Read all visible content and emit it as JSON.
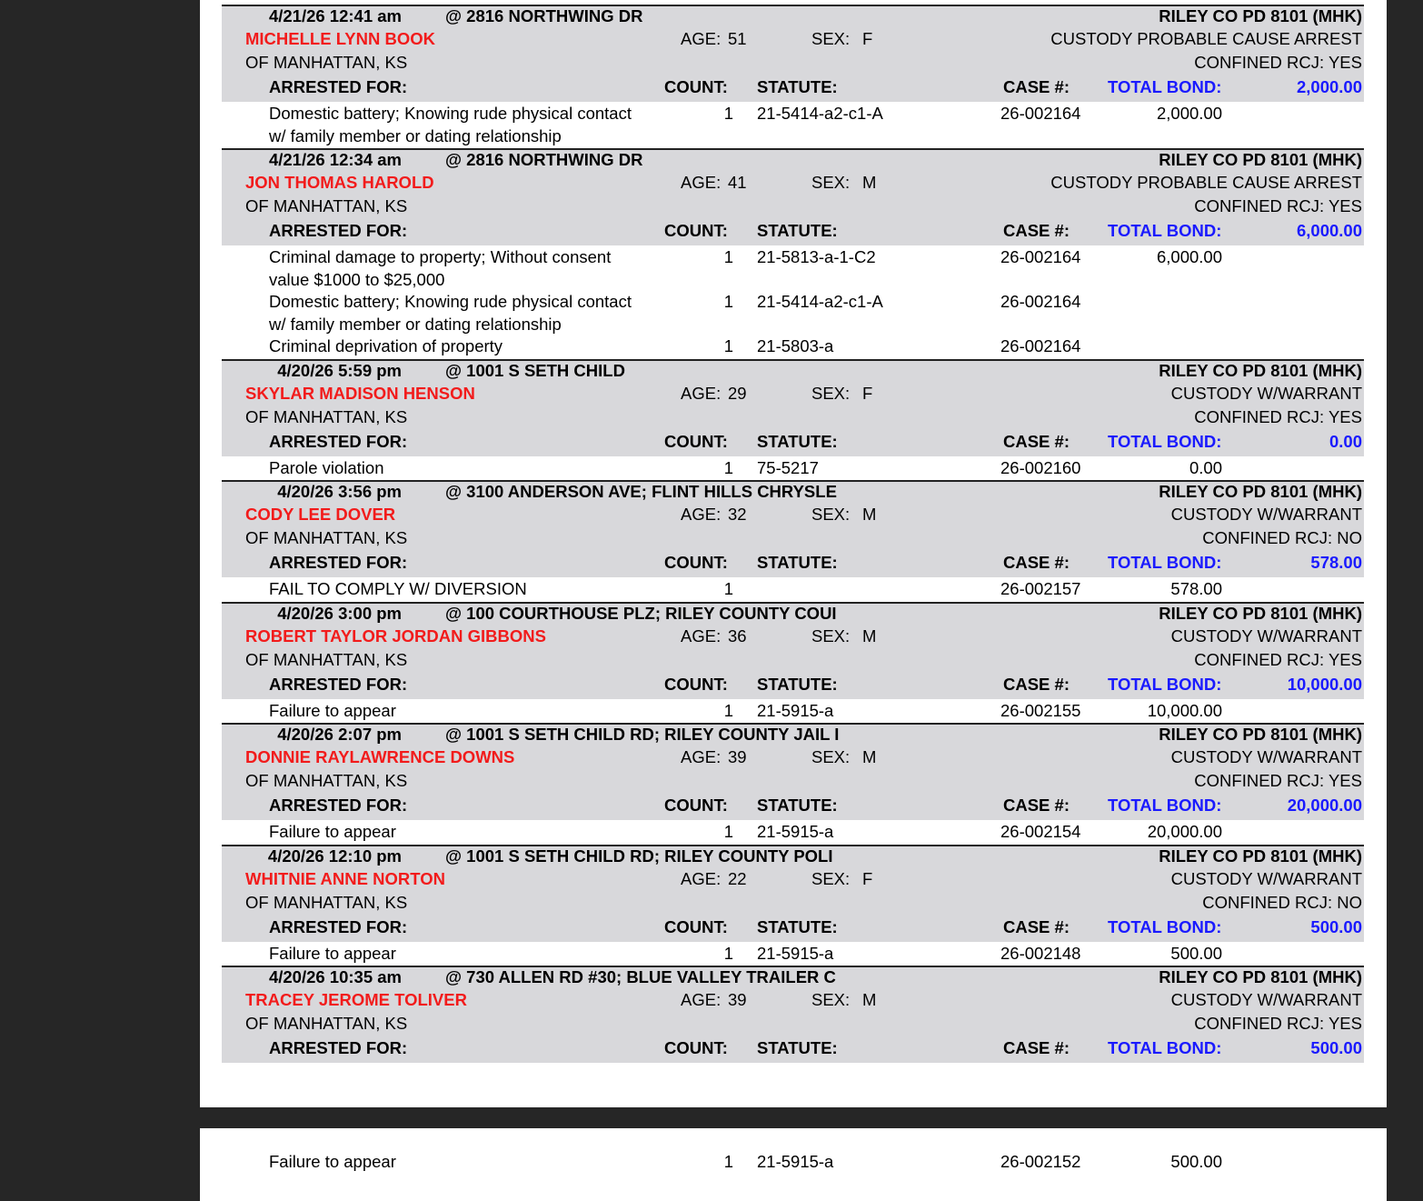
{
  "colors": {
    "name": "#f21b1b",
    "bond": "#1a1aff",
    "band": "#d8d8db",
    "background": "#262626"
  },
  "labels": {
    "age": "AGE:",
    "sex": "SEX:",
    "arrested_for": "ARRESTED FOR:",
    "count": "COUNT:",
    "statute": "STATUTE:",
    "case": "CASE #:",
    "total_bond": "TOTAL BOND:",
    "confined": "CONFINED RCJ:"
  },
  "records": [
    {
      "date": "4/21/26  12:41 am",
      "address": "@ 2816 NORTHWING DR",
      "agency": "RILEY CO PD 8101 (MHK)",
      "name": "MICHELLE LYNN BOOK",
      "age": "51",
      "sex": "F",
      "custody": "CUSTODY PROBABLE CAUSE ARREST",
      "residence": "OF MANHATTAN, KS",
      "confined": "YES",
      "total_bond": "2,000.00",
      "charges": [
        {
          "desc": [
            "Domestic battery; Knowing rude physical contact",
            "w/ family member or dating relationship"
          ],
          "count": "1",
          "statute": "21-5414-a2-c1-A",
          "case": "26-002164",
          "bond": "2,000.00"
        }
      ]
    },
    {
      "date": "4/21/26  12:34 am",
      "address": "@ 2816 NORTHWING DR",
      "agency": "RILEY CO PD 8101 (MHK)",
      "name": "JON THOMAS HAROLD",
      "age": "41",
      "sex": "M",
      "custody": "CUSTODY PROBABLE CAUSE ARREST",
      "residence": "OF MANHATTAN, KS",
      "confined": "YES",
      "total_bond": "6,000.00",
      "charges": [
        {
          "desc": [
            "Criminal damage to property; Without consent",
            "value $1000 to $25,000"
          ],
          "count": "1",
          "statute": "21-5813-a-1-C2",
          "case": "26-002164",
          "bond": "6,000.00"
        },
        {
          "desc": [
            "Domestic battery; Knowing rude physical contact",
            "w/ family member or dating relationship"
          ],
          "count": "1",
          "statute": "21-5414-a2-c1-A",
          "case": "26-002164",
          "bond": ""
        },
        {
          "desc": [
            "Criminal deprivation of property"
          ],
          "count": "1",
          "statute": "21-5803-a",
          "case": "26-002164",
          "bond": ""
        }
      ]
    },
    {
      "date": "4/20/26   5:59 pm",
      "address": "@ 1001 S SETH CHILD",
      "agency": "RILEY CO PD 8101 (MHK)",
      "name": "SKYLAR MADISON HENSON",
      "age": "29",
      "sex": "F",
      "custody": "CUSTODY W/WARRANT",
      "residence": "OF MANHATTAN, KS",
      "confined": "YES",
      "total_bond": "0.00",
      "charges": [
        {
          "desc": [
            "Parole violation"
          ],
          "count": "1",
          "statute": "75-5217",
          "case": "26-002160",
          "bond": "0.00"
        }
      ]
    },
    {
      "date": "4/20/26   3:56 pm",
      "address": "@ 3100 ANDERSON AVE; FLINT HILLS CHRYSLE",
      "agency": "RILEY CO PD 8101 (MHK)",
      "name": "CODY LEE DOVER",
      "age": "32",
      "sex": "M",
      "custody": "CUSTODY W/WARRANT",
      "residence": "OF MANHATTAN, KS",
      "confined": "NO",
      "total_bond": "578.00",
      "charges": [
        {
          "desc": [
            "FAIL TO COMPLY W/ DIVERSION"
          ],
          "count": "1",
          "statute": "",
          "case": "26-002157",
          "bond": "578.00"
        }
      ]
    },
    {
      "date": "4/20/26   3:00 pm",
      "address": "@ 100 COURTHOUSE PLZ; RILEY COUNTY COUI",
      "agency": "RILEY CO PD 8101 (MHK)",
      "name": "ROBERT TAYLOR JORDAN GIBBONS",
      "age": "36",
      "sex": "M",
      "custody": "CUSTODY W/WARRANT",
      "residence": "OF MANHATTAN, KS",
      "confined": "YES",
      "total_bond": "10,000.00",
      "charges": [
        {
          "desc": [
            "Failure to appear"
          ],
          "count": "1",
          "statute": "21-5915-a",
          "case": "26-002155",
          "bond": "10,000.00"
        }
      ]
    },
    {
      "date": "4/20/26   2:07 pm",
      "address": "@ 1001 S SETH CHILD RD; RILEY COUNTY JAIL I",
      "agency": "RILEY CO PD 8101 (MHK)",
      "name": "DONNIE RAYLAWRENCE DOWNS",
      "age": "39",
      "sex": "M",
      "custody": "CUSTODY W/WARRANT",
      "residence": "OF MANHATTAN, KS",
      "confined": "YES",
      "total_bond": "20,000.00",
      "charges": [
        {
          "desc": [
            "Failure to appear"
          ],
          "count": "1",
          "statute": "21-5915-a",
          "case": "26-002154",
          "bond": "20,000.00"
        }
      ]
    },
    {
      "date": "4/20/26  12:10 pm",
      "address": "@ 1001 S SETH CHILD RD; RILEY COUNTY POLI",
      "agency": "RILEY CO PD 8101 (MHK)",
      "name": "WHITNIE ANNE NORTON",
      "age": "22",
      "sex": "F",
      "custody": "CUSTODY W/WARRANT",
      "residence": "OF MANHATTAN, KS",
      "confined": "NO",
      "total_bond": "500.00",
      "charges": [
        {
          "desc": [
            "Failure to appear"
          ],
          "count": "1",
          "statute": "21-5915-a",
          "case": "26-002148",
          "bond": "500.00"
        }
      ]
    },
    {
      "date": "4/20/26  10:35 am",
      "address": "@ 730 ALLEN RD #30; BLUE VALLEY TRAILER C",
      "agency": "RILEY CO PD 8101 (MHK)",
      "name": "TRACEY JEROME TOLIVER",
      "age": "39",
      "sex": "M",
      "custody": "CUSTODY W/WARRANT",
      "residence": "OF MANHATTAN, KS",
      "confined": "YES",
      "total_bond": "500.00",
      "charges": []
    }
  ],
  "page2_charges": [
    {
      "desc": [
        "Failure to appear"
      ],
      "count": "1",
      "statute": "21-5915-a",
      "case": "26-002152",
      "bond": "500.00"
    }
  ]
}
